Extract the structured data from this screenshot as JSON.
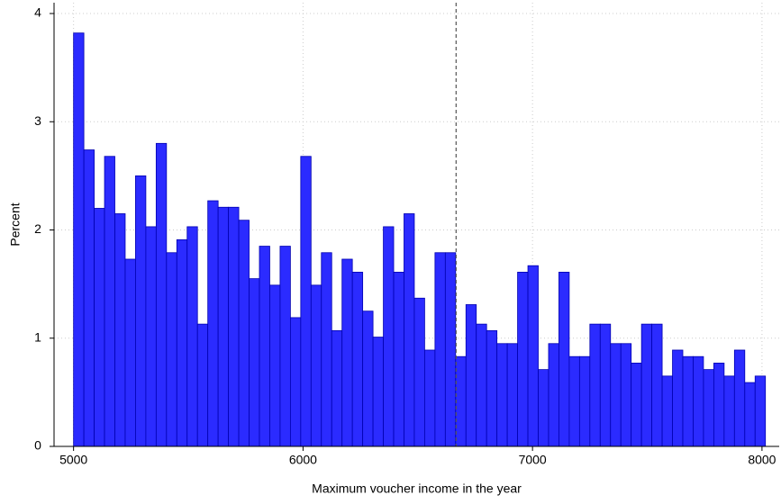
{
  "chart_data": {
    "type": "histogram",
    "x_label": "Maximum voucher income in the year",
    "y_label": "Percent",
    "bins": [
      5000,
      5045,
      5090,
      5135,
      5180,
      5225,
      5270,
      5315,
      5360,
      5405,
      5450,
      5495,
      5540,
      5585,
      5630,
      5675,
      5720,
      5765,
      5810,
      5855,
      5900,
      5945,
      5990,
      6035,
      6080,
      6125,
      6170,
      6215,
      6260,
      6305,
      6350,
      6395,
      6440,
      6485,
      6530,
      6575,
      6620,
      6665,
      6710,
      6755,
      6800,
      6845,
      6890,
      6935,
      6980,
      7025,
      7070,
      7115,
      7160,
      7205,
      7250,
      7295,
      7340,
      7385,
      7430,
      7475,
      7520,
      7565,
      7610,
      7655,
      7700,
      7745,
      7790,
      7835,
      7880,
      7925,
      7970,
      8015
    ],
    "values": [
      3.82,
      2.74,
      2.2,
      2.68,
      2.15,
      1.73,
      2.5,
      2.03,
      2.8,
      1.79,
      1.91,
      2.03,
      1.13,
      2.27,
      2.21,
      2.21,
      2.09,
      1.55,
      1.85,
      1.49,
      1.85,
      1.19,
      2.68,
      1.49,
      1.79,
      1.07,
      1.73,
      1.61,
      1.25,
      1.01,
      2.03,
      1.61,
      2.15,
      1.37,
      0.89,
      1.79,
      1.79,
      0.83,
      1.31,
      1.13,
      1.07,
      0.95,
      0.95,
      1.61,
      1.67,
      0.71,
      0.95,
      1.61,
      0.83,
      0.83,
      1.13,
      1.13,
      0.95,
      0.95,
      0.77,
      1.13,
      1.13,
      0.65,
      0.89,
      0.83,
      0.83,
      0.71,
      0.77,
      0.65,
      0.89,
      0.59,
      0.65
    ],
    "color": "#2b2bff",
    "edge_color": "#0000b0",
    "reference_line": 6667,
    "xlim": [
      4915,
      8075
    ],
    "xticks": [
      5000,
      6000,
      7000,
      8000
    ],
    "ylim": [
      0,
      4.1
    ],
    "yticks": [
      0,
      1,
      2,
      3,
      4
    ],
    "grid": true
  }
}
